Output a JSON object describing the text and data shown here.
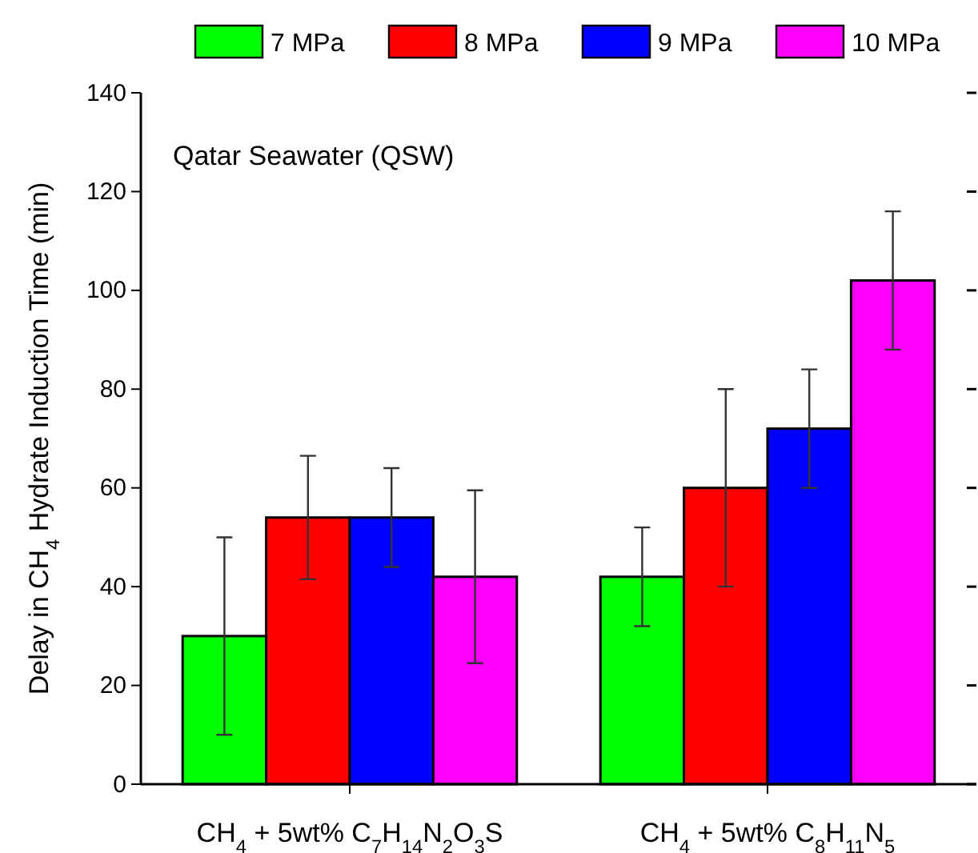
{
  "chart_data": {
    "type": "bar",
    "ylabel": "Delay in CH$_{4}$ Hydrate Induction Time (min)",
    "annotations": [
      "Qatar Seawater (QSW)"
    ],
    "categories": [
      "CH$_{4}$ + 5wt% C$_{7}$H$_{14}$N$_{2}$O$_{3}$S",
      "CH$_{4}$ + 5wt% C$_{8}$H$_{11}$N$_{5}$"
    ],
    "series": [
      {
        "name": "7 MPa",
        "color": "#00ff00",
        "values": [
          30,
          42
        ],
        "errors": [
          [
            10,
            50
          ],
          [
            32,
            52
          ]
        ]
      },
      {
        "name": "8 MPa",
        "color": "#ff0000",
        "values": [
          54,
          60
        ],
        "errors": [
          [
            41.5,
            66.5
          ],
          [
            40,
            80
          ]
        ]
      },
      {
        "name": "9 MPa",
        "color": "#0000ff",
        "values": [
          54,
          72
        ],
        "errors": [
          [
            44,
            64
          ],
          [
            60,
            84
          ]
        ]
      },
      {
        "name": "10 MPa",
        "color": "#ff00ff",
        "values": [
          42,
          102
        ],
        "errors": [
          [
            24.5,
            59.5
          ],
          [
            88,
            116
          ]
        ]
      }
    ],
    "ylim": [
      0,
      140
    ],
    "yticks": [
      0,
      20,
      40,
      60,
      80,
      100,
      120,
      140
    ],
    "legend": "top",
    "grid": false
  }
}
